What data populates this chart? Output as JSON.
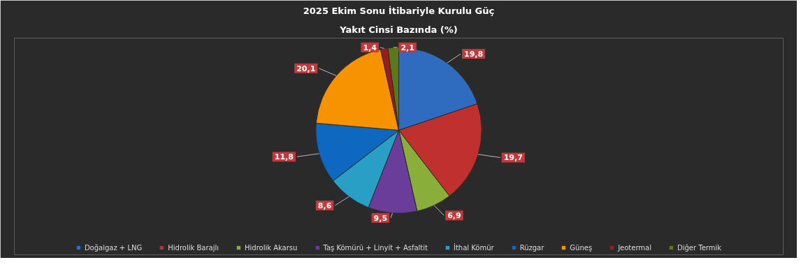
{
  "chart_data": {
    "type": "pie",
    "title": "2025 Ekim Sonu İtibariyle Kurulu Güç",
    "subtitle": "Yakıt Cinsi Bazında (%)",
    "categories": [
      "Doğalgaz + LNG",
      "Hidrolik Barajlı",
      "Hidrolik Akarsu",
      "Taş Kömürü + Linyit + Asfaltit",
      "İthal Kömür",
      "Rüzgar",
      "Güneş",
      "Jeotermal",
      "Diğer Termik"
    ],
    "values": [
      19.8,
      19.7,
      6.9,
      9.5,
      8.6,
      11.8,
      20.1,
      1.4,
      2.1
    ],
    "colors": [
      "#2f6cc0",
      "#c0302f",
      "#8aae3a",
      "#6a3d9a",
      "#2a9fc6",
      "#0f68c0",
      "#f79200",
      "#9a1c1c",
      "#5a7a1a"
    ],
    "value_labels": [
      "19,8",
      "19,7",
      "6,9",
      "9,5",
      "8,6",
      "11,8",
      "20,1",
      "1,4",
      "2,1"
    ],
    "legend": "bottom"
  }
}
